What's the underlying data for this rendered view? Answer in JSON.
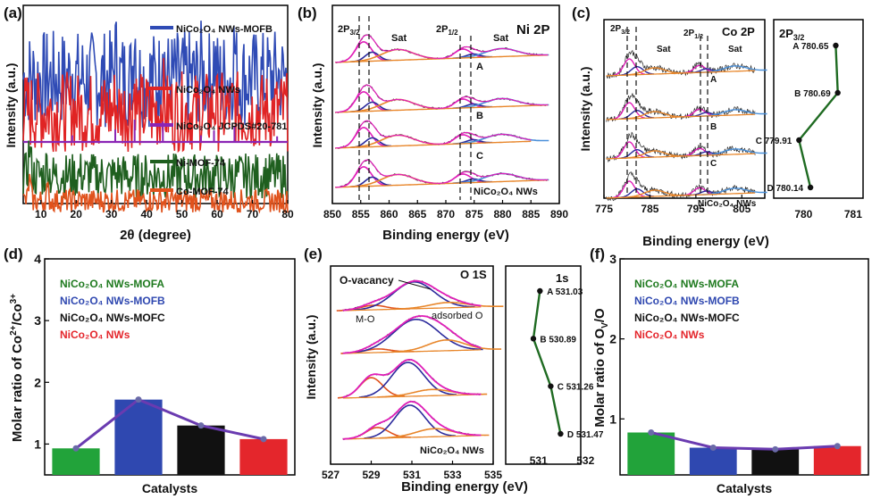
{
  "colors": {
    "blue": "#2f4bb5",
    "red": "#e02424",
    "purple": "#8a25b5",
    "darkgreen": "#1f5f1f",
    "orange": "#e0521c",
    "magenta": "#e01eb8",
    "navy": "#2b2a9c",
    "lightblue": "#4a90d9",
    "lineorange": "#e8862a",
    "green_bar": "#22a33a",
    "blue_bar": "#2f48b0",
    "black_bar": "#111111",
    "red_bar": "#e4262c",
    "purple_line": "#6a3bb0",
    "green_line": "#1f6b22"
  },
  "panels": {
    "a": {
      "letter": "(a)",
      "ylabel": "Intensity (a.u.)",
      "xlabel": "2θ (degree)",
      "ticks": [
        "10",
        "20",
        "30",
        "40",
        "50",
        "60",
        "70",
        "80"
      ],
      "legend": [
        "NiCo₂O₄ NWs-MOFB",
        "NiCo₂O₄ NWs",
        "NiCo₂O₄ JCPDS#20-781",
        "Ni-MOF-74",
        "Co-MOF-74"
      ]
    },
    "b": {
      "letter": "(b)",
      "ylabel": "Intensity (a.u.)",
      "xlabel": "Binding energy (eV)",
      "title": "Ni 2P",
      "ticks": [
        "850",
        "855",
        "860",
        "865",
        "870",
        "875",
        "880",
        "885",
        "890"
      ],
      "peaks": [
        "2P3/2",
        "Sat",
        "2P1/2",
        "Sat"
      ],
      "curve_labels": [
        "A",
        "B",
        "C",
        "NiCo₂O₄ NWs"
      ]
    },
    "c": {
      "letter": "(c)",
      "ylabel": "Intensity (a.u.)",
      "xlabel": "Binding energy (eV)",
      "title": "Co 2P",
      "ticks": [
        "775",
        "785",
        "795",
        "805"
      ],
      "peaks": [
        "2P3/2",
        "Sat",
        "2P1/2",
        "Sat"
      ],
      "curve_labels": [
        "A",
        "B",
        "C",
        "NiCo₂O₄ NWs"
      ]
    },
    "c_side": {
      "title": "2P3/2",
      "ticks": [
        "780",
        "781"
      ],
      "points": [
        {
          "label": "A",
          "value": 780.65
        },
        {
          "label": "B",
          "value": 780.69
        },
        {
          "label": "C",
          "value": 779.91
        },
        {
          "label": "D",
          "value": 780.14
        }
      ]
    },
    "e": {
      "letter": "(e)",
      "ylabel": "Intensity (a.u.)",
      "xlabel": "Binding energy (eV)",
      "title": "O 1S",
      "ticks": [
        "527",
        "529",
        "531",
        "533",
        "535"
      ],
      "annotations": [
        "O-vacancy",
        "M-O",
        "adsorbed O"
      ],
      "bottom_label": "NiCo₂O₄ NWs"
    },
    "e_side": {
      "title": "1s",
      "ticks": [
        "531",
        "532"
      ],
      "points": [
        {
          "label": "A",
          "value": 531.03
        },
        {
          "label": "B",
          "value": 530.89
        },
        {
          "label": "C",
          "value": 531.26
        },
        {
          "label": "D",
          "value": 531.47
        }
      ]
    },
    "d": {
      "letter": "(d)",
      "ylabel": "Molar ratio of Co2+/Co3+",
      "xlabel": "Catalysts",
      "ticks": [
        "1",
        "2",
        "3",
        "4"
      ],
      "legend": [
        "NiCo₂O₄ NWs-MOFA",
        "NiCo₂O₄ NWs-MOFB",
        "NiCo₂O₄ NWs-MOFC",
        "NiCo₂O₄ NWs"
      ]
    },
    "f": {
      "letter": "(f)",
      "ylabel": "Molar ratio of OV/O",
      "xlabel": "Catalysts",
      "ticks": [
        "1",
        "2",
        "3"
      ],
      "legend": [
        "NiCo₂O₄ NWs-MOFA",
        "NiCo₂O₄ NWs-MOFB",
        "NiCo₂O₄ NWs-MOFC",
        "NiCo₂O₄ NWs"
      ]
    }
  },
  "chart_data": [
    {
      "panel": "d",
      "type": "bar",
      "categories": [
        "NiCo₂O₄ NWs-MOFA",
        "NiCo₂O₄ NWs-MOFB",
        "NiCo₂O₄ NWs-MOFC",
        "NiCo₂O₄ NWs"
      ],
      "values": [
        0.93,
        1.72,
        1.3,
        1.08
      ],
      "ylabel": "Molar ratio of Co2+/Co3+",
      "xlabel": "Catalysts",
      "ylim": [
        0.5,
        4
      ]
    },
    {
      "panel": "f",
      "type": "bar",
      "categories": [
        "NiCo₂O₄ NWs-MOFA",
        "NiCo₂O₄ NWs-MOFB",
        "NiCo₂O₄ NWs-MOFC",
        "NiCo₂O₄ NWs"
      ],
      "values": [
        0.83,
        0.64,
        0.62,
        0.66
      ],
      "ylabel": "Molar ratio of OV/O",
      "xlabel": "Catalysts",
      "ylim": [
        0.3,
        3
      ]
    },
    {
      "panel": "c_side",
      "type": "line",
      "x": [
        "A",
        "B",
        "C",
        "D"
      ],
      "values": [
        780.65,
        780.69,
        779.91,
        780.14
      ],
      "title": "2P3/2"
    },
    {
      "panel": "e_side",
      "type": "line",
      "x": [
        "A",
        "B",
        "C",
        "D"
      ],
      "values": [
        531.03,
        530.89,
        531.26,
        531.47
      ],
      "title": "1s"
    }
  ]
}
